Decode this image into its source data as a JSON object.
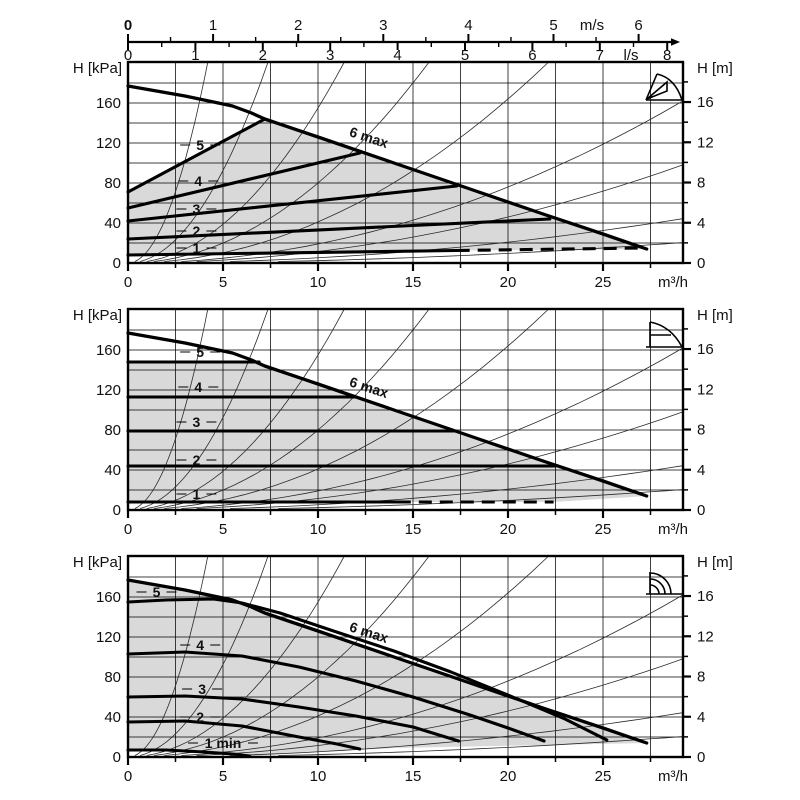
{
  "colors": {
    "region": "#d9d9d9",
    "curve": "#000000",
    "thin_line": "#2b2b2b",
    "grid": "#000000",
    "text": "#111111"
  },
  "top_ruler": {
    "unit_top": "m/s",
    "unit_bottom": "l/s",
    "top_ticks": [
      0,
      1,
      2,
      3,
      4,
      5,
      6
    ],
    "bottom_ticks": [
      0,
      1,
      2,
      3,
      4,
      5,
      6,
      7,
      8
    ]
  },
  "axes": {
    "x_unit": "m³/h",
    "y_left_label": "H [kPa]",
    "y_right_label": "H [m]",
    "x_ticks": [
      0,
      5,
      10,
      15,
      20,
      25
    ],
    "y_left_ticks": [
      0,
      40,
      80,
      120,
      160
    ],
    "y_right_ticks": [
      0,
      4,
      8,
      12,
      16
    ]
  },
  "thin_lines": {
    "parabola_coefficients": [
      11.4,
      3.7,
      1.55,
      0.8,
      0.41,
      0.19,
      0.115,
      0.052,
      0.024
    ]
  },
  "chart_data": [
    {
      "type": "line",
      "mode": "proportional-pressure",
      "icon": "proportional-pressure-icon",
      "xlabel": "m³/h",
      "ylabel_left": "H [kPa]",
      "ylabel_right": "H [m]",
      "xlim": [
        0,
        29.2
      ],
      "ylim": [
        0,
        201
      ],
      "max_label": {
        "text": "6 max",
        "q": 12.6,
        "h": 121,
        "rotate": 18
      },
      "max_curve": [
        [
          0,
          177
        ],
        [
          1.5,
          172
        ],
        [
          3,
          167
        ],
        [
          4.5,
          161
        ],
        [
          5.5,
          157
        ],
        [
          6.5,
          150
        ],
        [
          7.2,
          144
        ],
        [
          10,
          126
        ],
        [
          14,
          100
        ],
        [
          18,
          74
        ],
        [
          22,
          48
        ],
        [
          25,
          29
        ],
        [
          27.3,
          14
        ]
      ],
      "levels": [
        {
          "label": "5",
          "points": [
            [
              0,
              71
            ],
            [
              7.2,
              144
            ]
          ],
          "label_pos": [
            3.8,
            118
          ]
        },
        {
          "label": "4",
          "points": [
            [
              0,
              55
            ],
            [
              12.2,
              110
            ]
          ],
          "label_pos": [
            3.7,
            82
          ]
        },
        {
          "label": "3",
          "points": [
            [
              0,
              42
            ],
            [
              17.3,
              77
            ]
          ],
          "label_pos": [
            3.6,
            54
          ]
        },
        {
          "label": "2",
          "points": [
            [
              0,
              24
            ],
            [
              22.2,
              44
            ]
          ],
          "label_pos": [
            3.6,
            32
          ]
        },
        {
          "label": "1",
          "points": [
            [
              0,
              8
            ],
            [
              17.3,
              12.5
            ]
          ],
          "label_pos": [
            3.6,
            15
          ]
        }
      ],
      "dashed": [
        [
          17.3,
          12.5
        ],
        [
          27.1,
          15
        ]
      ],
      "region": [
        [
          0,
          71
        ],
        [
          7.2,
          144
        ],
        [
          10,
          126
        ],
        [
          14,
          100
        ],
        [
          18,
          74
        ],
        [
          22,
          48
        ],
        [
          25,
          29
        ],
        [
          27.3,
          14
        ],
        [
          17.3,
          12.5
        ],
        [
          0,
          8
        ]
      ]
    },
    {
      "type": "line",
      "mode": "constant-pressure",
      "icon": "constant-pressure-icon",
      "xlabel": "m³/h",
      "ylabel_left": "H [kPa]",
      "ylabel_right": "H [m]",
      "xlim": [
        0,
        29.2
      ],
      "ylim": [
        0,
        201
      ],
      "max_label": {
        "text": "6 max",
        "q": 12.6,
        "h": 118,
        "rotate": 18
      },
      "max_curve": [
        [
          0,
          177
        ],
        [
          1.5,
          172
        ],
        [
          3,
          167
        ],
        [
          4.5,
          161
        ],
        [
          5.5,
          157
        ],
        [
          6.5,
          150
        ],
        [
          7.2,
          144
        ],
        [
          10,
          126
        ],
        [
          14,
          100
        ],
        [
          18,
          74
        ],
        [
          22,
          48
        ],
        [
          25,
          29
        ],
        [
          27.3,
          14
        ]
      ],
      "levels": [
        {
          "label": "5",
          "points": [
            [
              0,
              148
            ],
            [
              6.9,
              148
            ]
          ],
          "label_pos": [
            3.8,
            158
          ]
        },
        {
          "label": "4",
          "points": [
            [
              0,
              113
            ],
            [
              11.9,
              113
            ]
          ],
          "label_pos": [
            3.7,
            123
          ]
        },
        {
          "label": "3",
          "points": [
            [
              0,
              79
            ],
            [
              17.2,
              79
            ]
          ],
          "label_pos": [
            3.6,
            88
          ]
        },
        {
          "label": "2",
          "points": [
            [
              0,
              44
            ],
            [
              22.5,
              44
            ]
          ],
          "label_pos": [
            3.6,
            50
          ]
        },
        {
          "label": "1",
          "points": [
            [
              0,
              8
            ],
            [
              14.2,
              8
            ]
          ],
          "label_pos": [
            3.6,
            16
          ]
        }
      ],
      "dashed": [
        [
          14.2,
          8
        ],
        [
          22.4,
          8
        ]
      ],
      "region": [
        [
          0,
          148
        ],
        [
          6.9,
          148
        ],
        [
          7.2,
          144
        ],
        [
          10,
          126
        ],
        [
          14,
          100
        ],
        [
          18,
          74
        ],
        [
          22,
          48
        ],
        [
          25,
          29
        ],
        [
          27.3,
          14
        ],
        [
          22.4,
          8
        ],
        [
          0,
          8
        ]
      ]
    },
    {
      "type": "line",
      "mode": "constant-curve",
      "icon": "constant-curves-icon",
      "xlabel": "m³/h",
      "ylabel_left": "H [kPa]",
      "ylabel_right": "H [m]",
      "xlim": [
        0,
        29.2
      ],
      "ylim": [
        0,
        201
      ],
      "max_label": {
        "text": "6 max",
        "q": 12.6,
        "h": 120,
        "rotate": 18
      },
      "max_curve": [
        [
          0,
          177
        ],
        [
          1.5,
          172
        ],
        [
          3,
          167
        ],
        [
          4.5,
          161
        ],
        [
          5.5,
          157
        ],
        [
          6.5,
          150
        ],
        [
          7.2,
          144
        ],
        [
          10,
          126
        ],
        [
          14,
          100
        ],
        [
          18,
          74
        ],
        [
          22,
          48
        ],
        [
          25,
          29
        ],
        [
          27.3,
          14
        ]
      ],
      "levels": [
        {
          "label": "5",
          "points": [
            [
              0,
              155
            ],
            [
              2,
              157
            ],
            [
              4.5,
              158
            ],
            [
              6,
              154
            ],
            [
              8,
              144
            ],
            [
              10.5,
              128
            ],
            [
              14,
              106
            ],
            [
              17,
              85
            ],
            [
              20,
              62
            ],
            [
              23,
              38
            ],
            [
              25.2,
              17
            ]
          ],
          "label_pos": [
            1.5,
            165
          ]
        },
        {
          "label": "4",
          "points": [
            [
              0,
              103
            ],
            [
              3,
              105
            ],
            [
              6,
              101
            ],
            [
              9,
              90
            ],
            [
              12,
              76
            ],
            [
              15,
              60
            ],
            [
              18,
              42
            ],
            [
              20,
              29
            ],
            [
              21.9,
              16
            ]
          ],
          "label_pos": [
            3.8,
            112
          ]
        },
        {
          "label": "3",
          "points": [
            [
              0,
              60
            ],
            [
              3,
              61
            ],
            [
              6,
              58
            ],
            [
              9,
              50
            ],
            [
              12,
              41
            ],
            [
              15,
              30
            ],
            [
              17.4,
              16
            ]
          ],
          "label_pos": [
            3.9,
            68
          ]
        },
        {
          "label": "2",
          "points": [
            [
              0,
              35
            ],
            [
              3,
              36
            ],
            [
              6,
              31
            ],
            [
              9,
              20
            ],
            [
              11,
              13
            ],
            [
              12.2,
              8
            ]
          ],
          "label_pos": [
            3.8,
            40
          ]
        },
        {
          "label": "1 min",
          "points": [
            [
              0,
              7
            ],
            [
              2,
              7
            ],
            [
              4,
              5
            ],
            [
              5.5,
              3
            ],
            [
              6.4,
              1
            ]
          ],
          "label_pos": [
            5.0,
            14
          ]
        }
      ],
      "dashed": null,
      "region": [
        [
          0,
          177
        ],
        [
          1.5,
          172
        ],
        [
          3,
          167
        ],
        [
          4.5,
          161
        ],
        [
          5.5,
          157
        ],
        [
          6.5,
          150
        ],
        [
          7.2,
          144
        ],
        [
          10,
          126
        ],
        [
          14,
          100
        ],
        [
          18,
          74
        ],
        [
          22,
          48
        ],
        [
          25,
          29
        ],
        [
          27.3,
          14
        ],
        [
          14,
          9
        ],
        [
          6.4,
          1
        ],
        [
          5.5,
          3
        ],
        [
          4,
          5
        ],
        [
          2,
          7
        ],
        [
          0,
          7
        ]
      ]
    }
  ]
}
